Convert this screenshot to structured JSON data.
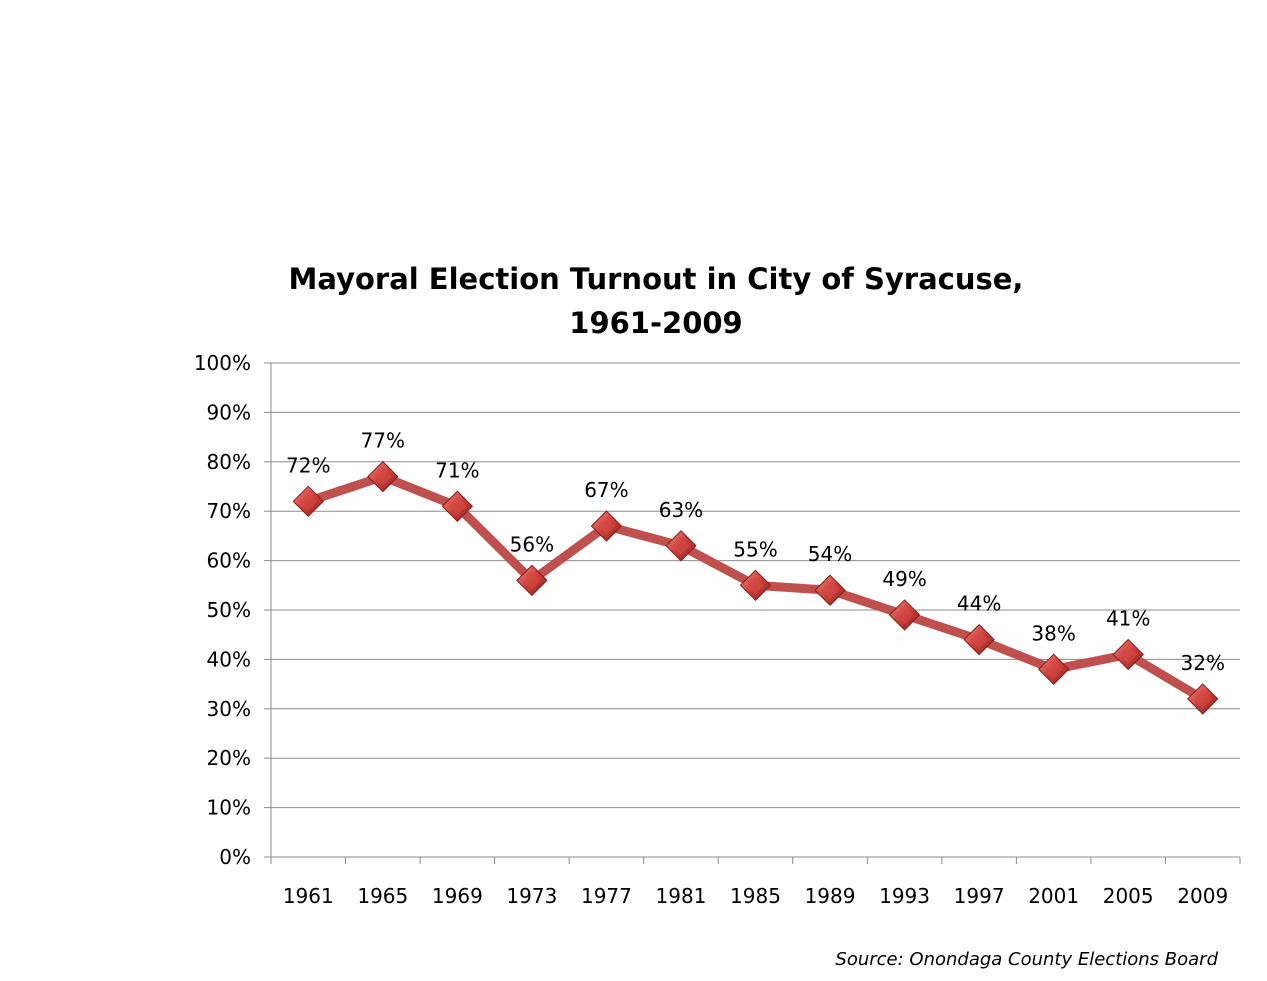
{
  "chart_data": {
    "type": "line",
    "title": "Mayoral Election Turnout in City of Syracuse,",
    "subtitle": "1961-2009",
    "xlabel": "",
    "ylabel": "",
    "categories": [
      "1961",
      "1965",
      "1969",
      "1973",
      "1977",
      "1981",
      "1985",
      "1989",
      "1993",
      "1997",
      "2001",
      "2005",
      "2009"
    ],
    "series": [
      {
        "values": [
          72,
          77,
          71,
          56,
          67,
          63,
          55,
          54,
          49,
          44,
          38,
          41,
          32
        ],
        "labels": [
          "72%",
          "77%",
          "71%",
          "56%",
          "67%",
          "63%",
          "55%",
          "54%",
          "49%",
          "44%",
          "38%",
          "41%",
          "32%"
        ],
        "color": "#c0504d"
      }
    ],
    "y_ticks": [
      "0%",
      "10%",
      "20%",
      "30%",
      "40%",
      "50%",
      "60%",
      "70%",
      "80%",
      "90%",
      "100%"
    ],
    "ylim": [
      0,
      100
    ],
    "grid": true,
    "legend": "none",
    "marker": "diamond",
    "source": "Source: Onondaga County Elections Board"
  }
}
